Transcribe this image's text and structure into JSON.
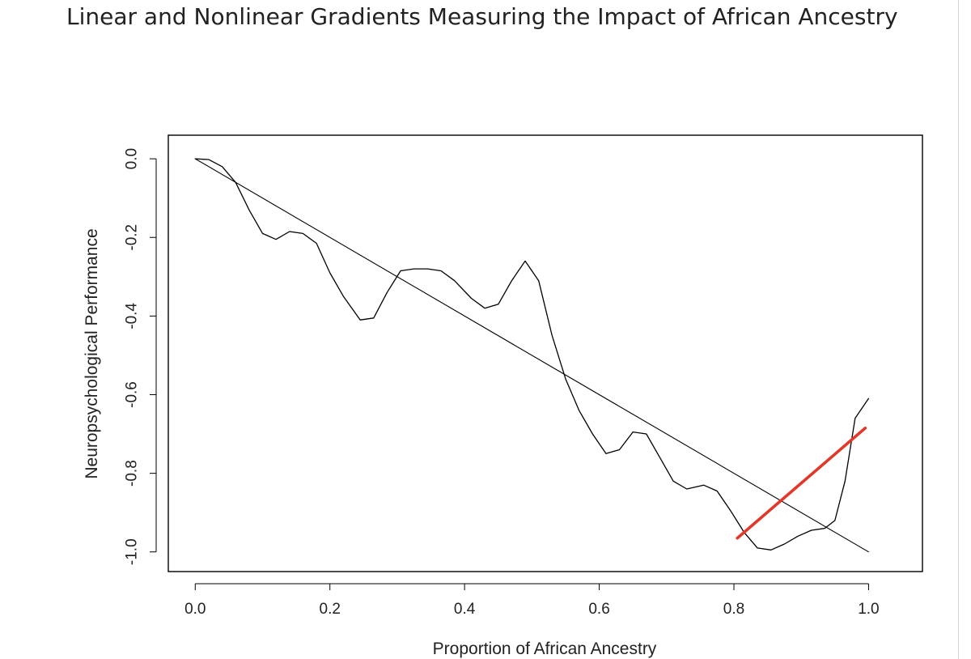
{
  "page": {
    "title": "Linear and Nonlinear Gradients Measuring the Impact of African Ancestry"
  },
  "chart_data": {
    "type": "line",
    "title": "",
    "xlabel": "Proportion of African Ancestry",
    "ylabel": "Neuropsychological Performance",
    "xlim": [
      -0.04,
      1.08
    ],
    "ylim": [
      -1.05,
      0.06
    ],
    "xticks": [
      0.0,
      0.2,
      0.4,
      0.6,
      0.8,
      1.0
    ],
    "xtick_labels": [
      "0.0",
      "0.2",
      "0.4",
      "0.6",
      "0.8",
      "1.0"
    ],
    "yticks": [
      0.0,
      -0.2,
      -0.4,
      -0.6,
      -0.8,
      -1.0
    ],
    "ytick_labels": [
      "0.0",
      "-0.2",
      "-0.4",
      "-0.6",
      "-0.8",
      "-1.0"
    ],
    "grid": false,
    "legend": "none",
    "colors": {
      "nonlinear": "#000000",
      "linear": "#000000",
      "segment": "#e0382b"
    },
    "series": [
      {
        "x": [
          0.0,
          0.02,
          0.04,
          0.06,
          0.08,
          0.1,
          0.12,
          0.14,
          0.16,
          0.18,
          0.2,
          0.22,
          0.245,
          0.265,
          0.285,
          0.305,
          0.325,
          0.345,
          0.365,
          0.385,
          0.41,
          0.43,
          0.45,
          0.47,
          0.49,
          0.51,
          0.53,
          0.55,
          0.57,
          0.59,
          0.61,
          0.63,
          0.65,
          0.67,
          0.69,
          0.71,
          0.73,
          0.755,
          0.775,
          0.795,
          0.815,
          0.835,
          0.855,
          0.875,
          0.895,
          0.915,
          0.935,
          0.95,
          0.965,
          0.98,
          1.0
        ],
        "values": [
          0.0,
          -0.002,
          -0.02,
          -0.06,
          -0.13,
          -0.19,
          -0.205,
          -0.185,
          -0.19,
          -0.215,
          -0.29,
          -0.35,
          -0.41,
          -0.405,
          -0.34,
          -0.285,
          -0.28,
          -0.28,
          -0.285,
          -0.31,
          -0.355,
          -0.38,
          -0.37,
          -0.31,
          -0.26,
          -0.31,
          -0.45,
          -0.56,
          -0.64,
          -0.7,
          -0.75,
          -0.74,
          -0.695,
          -0.7,
          -0.76,
          -0.82,
          -0.84,
          -0.83,
          -0.845,
          -0.895,
          -0.95,
          -0.99,
          -0.995,
          -0.98,
          -0.96,
          -0.945,
          -0.94,
          -0.92,
          -0.82,
          -0.66,
          -0.61
        ]
      },
      {
        "x": [
          0.0,
          1.0
        ],
        "values": [
          0.0,
          -1.0
        ]
      },
      {
        "x": [
          0.805,
          0.995
        ],
        "values": [
          -0.965,
          -0.685
        ]
      }
    ]
  }
}
